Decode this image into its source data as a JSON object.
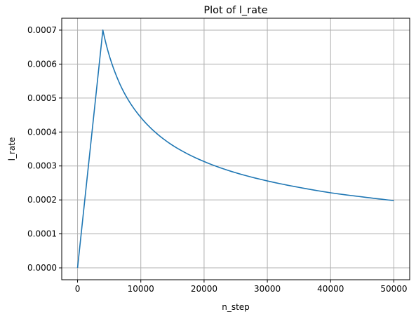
{
  "chart_data": {
    "type": "line",
    "title": "Plot of l_rate",
    "xlabel": "n_step",
    "ylabel": "l_rate",
    "xlim": [
      -2500,
      52500
    ],
    "ylim": [
      -3.5e-05,
      0.000735
    ],
    "grid": true,
    "xticks": [
      0,
      10000,
      20000,
      30000,
      40000,
      50000
    ],
    "xtick_labels": [
      "0",
      "10000",
      "20000",
      "30000",
      "40000",
      "50000"
    ],
    "yticks": [
      0,
      0.0001,
      0.0002,
      0.0003,
      0.0004,
      0.0005,
      0.0006,
      0.0007
    ],
    "ytick_labels": [
      "0.0000",
      "0.0001",
      "0.0002",
      "0.0003",
      "0.0004",
      "0.0005",
      "0.0006",
      "0.0007"
    ],
    "series": [
      {
        "color": "#1f77b4",
        "x": [
          0,
          4000,
          5000,
          6000,
          7000,
          8000,
          10000,
          12000,
          15000,
          20000,
          25000,
          30000,
          35000,
          40000,
          45000,
          50000
        ],
        "y": [
          0,
          0.0007,
          0.000626,
          0.000572,
          0.000529,
          0.000495,
          0.000443,
          0.000404,
          0.000361,
          0.000313,
          0.00028,
          0.000256,
          0.000237,
          0.000221,
          0.000209,
          0.000198
        ]
      }
    ]
  }
}
